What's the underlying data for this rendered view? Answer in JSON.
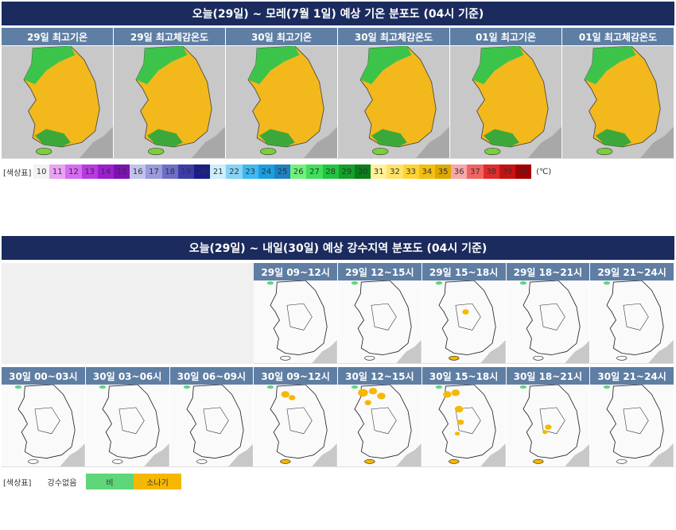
{
  "temperature": {
    "title": "오늘(29일) ~ 모레(7월 1일) 예상 기온 분포도 (04시 기준)",
    "columns": [
      "29일 최고기온",
      "29일 최고체감온도",
      "30일 최고기온",
      "30일 최고체감온도",
      "01일 최고기온",
      "01일 최고체감온도"
    ],
    "legend_label": "[색상표]",
    "scale": [
      {
        "label": "10",
        "color": "#f2f2f2"
      },
      {
        "label": "11",
        "color": "#e9a3f2"
      },
      {
        "label": "12",
        "color": "#d66cf0"
      },
      {
        "label": "13",
        "color": "#b83be0"
      },
      {
        "label": "14",
        "color": "#9b1fcf"
      },
      {
        "label": "15",
        "color": "#7d12b0"
      },
      {
        "label": "16",
        "color": "#c2c2ea"
      },
      {
        "label": "17",
        "color": "#9a9adc"
      },
      {
        "label": "18",
        "color": "#6e6ec6"
      },
      {
        "label": "19",
        "color": "#3d3da8"
      },
      {
        "label": "20",
        "color": "#1c1c8a"
      },
      {
        "label": "21",
        "color": "#cdeefc"
      },
      {
        "label": "22",
        "color": "#86d3f6"
      },
      {
        "label": "23",
        "color": "#40b9f0"
      },
      {
        "label": "24",
        "color": "#1b9ee0"
      },
      {
        "label": "25",
        "color": "#1f80c2"
      },
      {
        "label": "26",
        "color": "#72f07e"
      },
      {
        "label": "27",
        "color": "#40df5c"
      },
      {
        "label": "28",
        "color": "#22c53e"
      },
      {
        "label": "29",
        "color": "#14a02a"
      },
      {
        "label": "30",
        "color": "#0b7e1c"
      },
      {
        "label": "31",
        "color": "#fff19c"
      },
      {
        "label": "32",
        "color": "#ffe26a"
      },
      {
        "label": "33",
        "color": "#ffd334"
      },
      {
        "label": "34",
        "color": "#f2bf12"
      },
      {
        "label": "35",
        "color": "#dfa800"
      },
      {
        "label": "36",
        "color": "#f7a8a8"
      },
      {
        "label": "37",
        "color": "#f06464"
      },
      {
        "label": "38",
        "color": "#e02c2c"
      },
      {
        "label": "39",
        "color": "#c81212"
      },
      {
        "label": "40",
        "color": "#a30000"
      }
    ],
    "unit": "(℃)"
  },
  "precipitation": {
    "title": "오늘(29일) ~ 내일(30일) 예상 강수지역 분포도 (04시 기준)",
    "row1": [
      "29일 09~12시",
      "29일 12~15시",
      "29일 15~18시",
      "29일 18~21시",
      "29일 21~24시"
    ],
    "row2": [
      "30일 00~03시",
      "30일 03~06시",
      "30일 06~09시",
      "30일 09~12시",
      "30일 12~15시",
      "30일 15~18시",
      "30일 18~21시",
      "30일 21~24시"
    ],
    "legend_label": "[색상표]",
    "legend": [
      {
        "label": "강수없음"
      },
      {
        "label": "비",
        "color": "#5fd67a"
      },
      {
        "label": "소나기",
        "color": "#f5b800"
      }
    ]
  }
}
